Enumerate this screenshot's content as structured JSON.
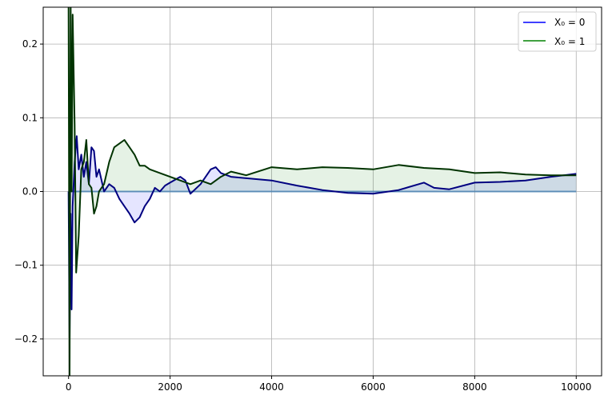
{
  "chart_data": {
    "type": "line",
    "title": "",
    "xlabel": "",
    "ylabel": "",
    "xlim": [
      -500,
      10500
    ],
    "ylim": [
      -0.25,
      0.25
    ],
    "grid": true,
    "legend_placement": "top-right",
    "x_ticks": [
      0,
      2000,
      4000,
      6000,
      8000,
      10000
    ],
    "x_tick_labels": [
      "0",
      "2000",
      "4000",
      "6000",
      "8000",
      "10000"
    ],
    "y_ticks": [
      -0.2,
      -0.1,
      0.0,
      0.1,
      0.2
    ],
    "y_tick_labels": [
      "−0.2",
      "−0.1",
      "0.0",
      "0.1",
      "0.2"
    ],
    "reference_line": {
      "y": 0,
      "color": "#4682b4"
    },
    "series": [
      {
        "name": "X_0 = 0",
        "legend_label": "X₀ = 0",
        "legend_color": "#0000ff",
        "line_color": "#000080",
        "fill_color": "#0000ff",
        "x": [
          0,
          20,
          40,
          60,
          80,
          120,
          160,
          200,
          250,
          300,
          350,
          400,
          450,
          500,
          550,
          600,
          700,
          800,
          900,
          1000,
          1100,
          1200,
          1300,
          1400,
          1500,
          1600,
          1700,
          1800,
          1900,
          2000,
          2200,
          2300,
          2400,
          2600,
          2800,
          2900,
          3000,
          3200,
          3500,
          4000,
          4500,
          5000,
          5500,
          6000,
          6500,
          7000,
          7200,
          7500,
          8000,
          8500,
          9000,
          9500,
          10000
        ],
        "y": [
          0,
          -0.2,
          -0.03,
          -0.16,
          -0.02,
          0.04,
          0.075,
          0.03,
          0.05,
          0.02,
          0.04,
          0.01,
          0.06,
          0.055,
          0.02,
          0.03,
          0.0,
          0.01,
          0.005,
          -0.01,
          -0.02,
          -0.03,
          -0.042,
          -0.035,
          -0.02,
          -0.01,
          0.005,
          0.0,
          0.008,
          0.012,
          0.02,
          0.015,
          -0.003,
          0.01,
          0.03,
          0.033,
          0.025,
          0.02,
          0.018,
          0.015,
          0.008,
          0.002,
          -0.002,
          -0.003,
          0.002,
          0.012,
          0.005,
          0.003,
          0.012,
          0.013,
          0.015,
          0.02,
          0.024
        ]
      },
      {
        "name": "X_0 = 1",
        "legend_label": "X₀ = 1",
        "legend_color": "#008000",
        "line_color": "#003300",
        "fill_color": "#008000",
        "x": [
          0,
          20,
          40,
          60,
          80,
          120,
          150,
          200,
          250,
          300,
          350,
          400,
          450,
          500,
          550,
          600,
          700,
          800,
          900,
          1000,
          1100,
          1200,
          1300,
          1400,
          1500,
          1600,
          1800,
          2000,
          2200,
          2400,
          2600,
          2800,
          3000,
          3200,
          3500,
          4000,
          4500,
          5000,
          5500,
          6000,
          6500,
          7000,
          7500,
          8000,
          8500,
          9000,
          9500,
          10000
        ],
        "y": [
          0.25,
          -0.25,
          0.26,
          0.0,
          0.24,
          0.09,
          -0.11,
          -0.06,
          0.03,
          0.04,
          0.07,
          0.01,
          0.005,
          -0.03,
          -0.02,
          0.0,
          0.01,
          0.04,
          0.06,
          0.065,
          0.07,
          0.06,
          0.05,
          0.035,
          0.035,
          0.03,
          0.025,
          0.02,
          0.015,
          0.01,
          0.015,
          0.01,
          0.02,
          0.027,
          0.022,
          0.033,
          0.03,
          0.033,
          0.032,
          0.03,
          0.036,
          0.032,
          0.03,
          0.025,
          0.026,
          0.023,
          0.022,
          0.022
        ]
      }
    ]
  }
}
